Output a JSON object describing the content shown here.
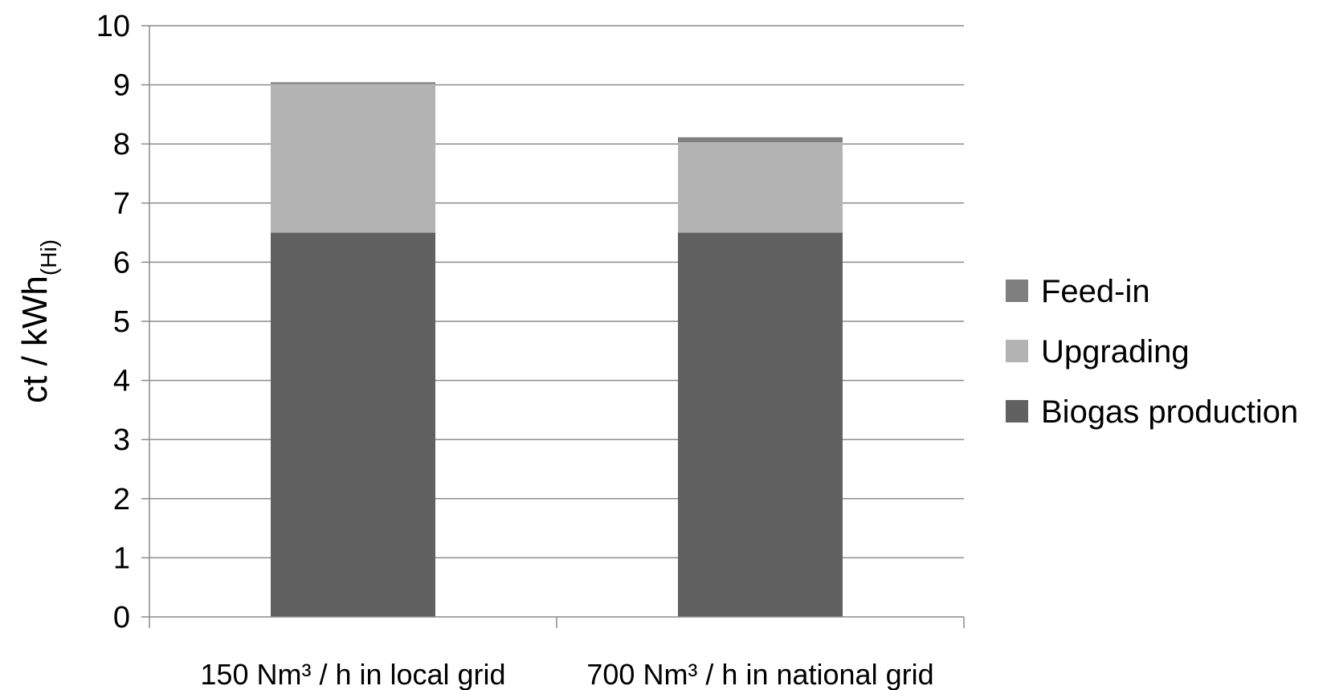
{
  "chart_data": {
    "type": "bar",
    "stacked": true,
    "categories": [
      "150 Nm³ / h in local grid",
      "700 Nm³ / h in national grid"
    ],
    "series": [
      {
        "name": "Biogas production",
        "values": [
          6.5,
          6.5
        ],
        "color": "#616161"
      },
      {
        "name": "Upgrading",
        "values": [
          2.53,
          1.53
        ],
        "color": "#b3b3b3"
      },
      {
        "name": "Feed-in",
        "values": [
          0.0,
          0.07
        ],
        "color": "#7f7f7f"
      }
    ],
    "legend_order": [
      "Feed-in",
      "Upgrading",
      "Biogas production"
    ],
    "ylabel_main": "ct / kWh",
    "ylabel_sub": "(Hi)",
    "xlabel": "",
    "title": "",
    "ylim": [
      0,
      10
    ],
    "yticks": [
      0,
      1,
      2,
      3,
      4,
      5,
      6,
      7,
      8,
      9,
      10
    ],
    "grid": true,
    "legend_position": "right"
  }
}
